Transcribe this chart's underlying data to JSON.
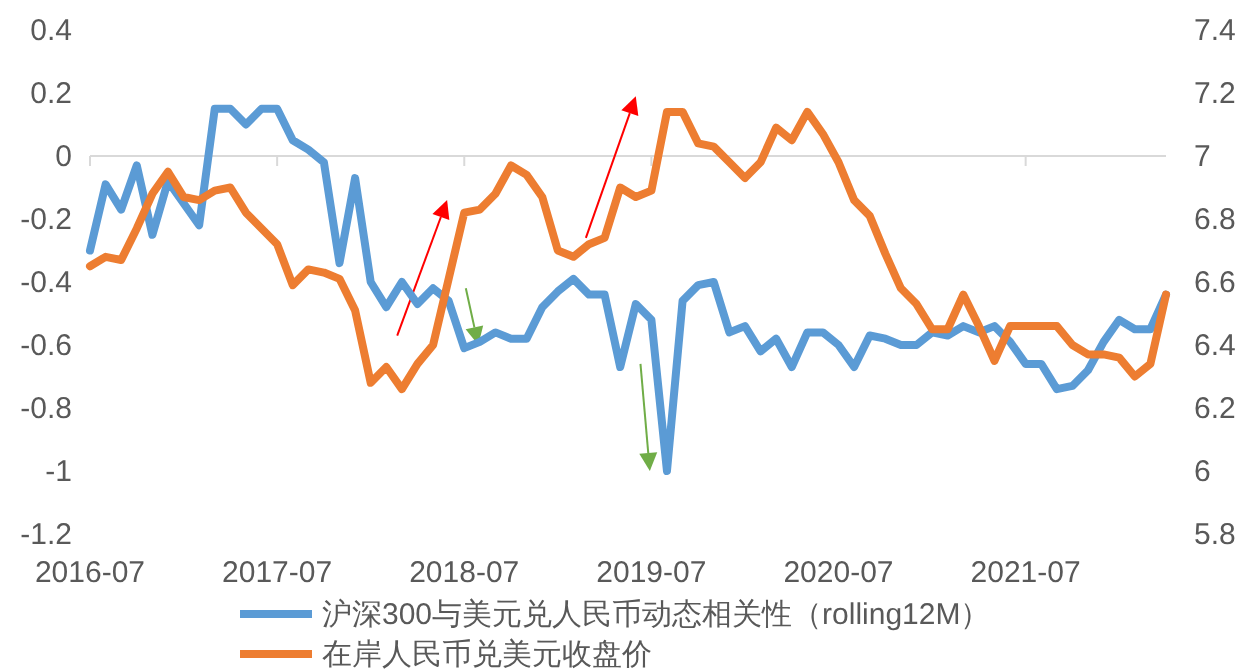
{
  "chart_data": {
    "type": "line",
    "categories": [
      "2016-07",
      null,
      null,
      null,
      null,
      null,
      null,
      null,
      null,
      null,
      null,
      null,
      "2017-07",
      null,
      null,
      null,
      null,
      null,
      null,
      null,
      null,
      null,
      null,
      null,
      "2018-07",
      null,
      null,
      null,
      null,
      null,
      null,
      null,
      null,
      null,
      null,
      null,
      "2019-07",
      null,
      null,
      null,
      null,
      null,
      null,
      null,
      null,
      null,
      null,
      null,
      "2020-07",
      null,
      null,
      null,
      null,
      null,
      null,
      null,
      null,
      null,
      null,
      null,
      "2021-07",
      null,
      null,
      null,
      null,
      null,
      null,
      null,
      null,
      null
    ],
    "series": [
      {
        "name": "沪深300与美元兑人民币动态相关性（rolling12M）",
        "color": "#5b9bd5",
        "values": [
          -0.3,
          -0.09,
          -0.17,
          -0.03,
          -0.25,
          -0.08,
          -0.15,
          -0.22,
          0.15,
          0.15,
          0.1,
          0.15,
          0.15,
          0.05,
          0.02,
          -0.02,
          -0.34,
          -0.07,
          -0.4,
          -0.48,
          -0.4,
          -0.47,
          -0.42,
          -0.46,
          -0.61,
          -0.59,
          -0.56,
          -0.58,
          -0.58,
          -0.48,
          -0.43,
          -0.39,
          -0.44,
          -0.44,
          -0.67,
          -0.47,
          -0.52,
          -1.0,
          -0.46,
          -0.41,
          -0.4,
          -0.56,
          -0.54,
          -0.62,
          -0.58,
          -0.67,
          -0.56,
          -0.56,
          -0.6,
          -0.67,
          -0.57,
          -0.58,
          -0.6,
          -0.6,
          -0.56,
          -0.57,
          -0.54,
          -0.56,
          -0.54,
          -0.59,
          -0.66,
          -0.66,
          -0.74,
          -0.73,
          -0.68,
          -0.59,
          -0.52,
          -0.55,
          -0.55,
          -0.44
        ]
      },
      {
        "name": "在岸人民币兑美元收盘价",
        "color": "#ed7d31",
        "axis": "y2",
        "values": [
          6.65,
          6.68,
          6.67,
          6.77,
          6.88,
          6.95,
          6.87,
          6.86,
          6.89,
          6.9,
          6.82,
          6.77,
          6.72,
          6.59,
          6.64,
          6.63,
          6.61,
          6.51,
          6.28,
          6.33,
          6.26,
          6.34,
          6.4,
          6.61,
          6.82,
          6.83,
          6.88,
          6.97,
          6.94,
          6.87,
          6.7,
          6.68,
          6.72,
          6.74,
          6.9,
          6.87,
          6.89,
          7.14,
          7.14,
          7.04,
          7.03,
          6.98,
          6.93,
          6.98,
          7.09,
          7.05,
          7.14,
          7.07,
          6.98,
          6.86,
          6.81,
          6.69,
          6.58,
          6.53,
          6.45,
          6.45,
          6.56,
          6.46,
          6.35,
          6.46,
          6.46,
          6.46,
          6.46,
          6.4,
          6.37,
          6.37,
          6.36,
          6.3,
          6.34,
          6.56
        ]
      }
    ],
    "ylim": [
      -1.2,
      0.4
    ],
    "yticks": [
      -1.2,
      -1,
      -0.8,
      -0.6,
      -0.4,
      -0.2,
      0,
      0.2,
      0.4
    ],
    "y2lim": [
      5.8,
      7.4
    ],
    "y2ticks": [
      5.8,
      6,
      6.2,
      6.4,
      6.6,
      6.8,
      7,
      7.2,
      7.4
    ],
    "legend": "bottom"
  }
}
